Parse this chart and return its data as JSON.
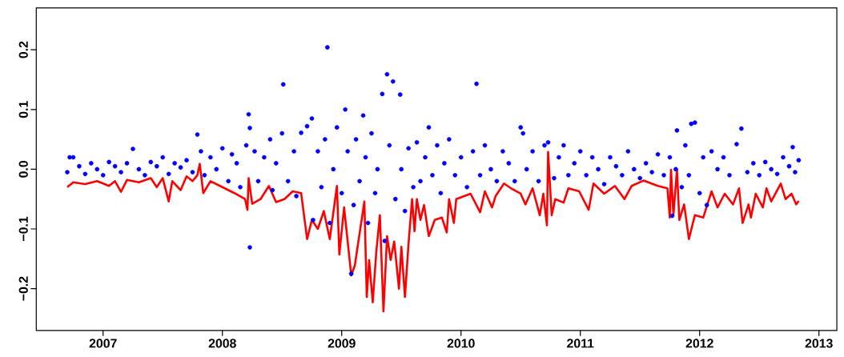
{
  "chart_data": {
    "type": "scatter",
    "marker": "circle",
    "xlim": [
      2006.44,
      2013.15
    ],
    "ylim": [
      -0.27,
      0.27
    ],
    "xticks": [
      2007,
      2008,
      2009,
      2010,
      2011,
      2012,
      2013
    ],
    "yticks": [
      {
        "value": -0.2,
        "label": "−0.2"
      },
      {
        "value": -0.1,
        "label": "−0.1"
      },
      {
        "value": 0,
        "label": "0.0"
      },
      {
        "value": 0.1,
        "label": "0.1"
      },
      {
        "value": 0.2,
        "label": "0.2"
      }
    ],
    "series": [
      {
        "color": "#0000ff",
        "x": [
          2006.7,
          2006.72,
          2006.75,
          2006.8,
          2006.85,
          2006.9,
          2006.95,
          2007.0,
          2007.05,
          2007.1,
          2007.15,
          2007.2,
          2007.25,
          2007.3,
          2007.35,
          2007.4,
          2007.45,
          2007.5,
          2007.55,
          2007.6,
          2007.65,
          2007.7,
          2007.75,
          2007.79,
          2007.82,
          2007.85,
          2007.9,
          2007.95,
          2008.0,
          2008.05,
          2008.08,
          2008.12,
          2008.15,
          2008.2,
          2008.22,
          2008.23,
          2008.23,
          2008.27,
          2008.3,
          2008.35,
          2008.4,
          2008.42,
          2008.45,
          2008.5,
          2008.51,
          2008.55,
          2008.6,
          2008.62,
          2008.66,
          2008.71,
          2008.75,
          2008.76,
          2008.8,
          2008.83,
          2008.86,
          2008.88,
          2008.9,
          2008.93,
          2008.96,
          2009.0,
          2009.03,
          2009.05,
          2009.08,
          2009.1,
          2009.12,
          2009.15,
          2009.18,
          2009.2,
          2009.22,
          2009.25,
          2009.28,
          2009.3,
          2009.34,
          2009.36,
          2009.38,
          2009.4,
          2009.43,
          2009.45,
          2009.49,
          2009.5,
          2009.53,
          2009.56,
          2009.6,
          2009.63,
          2009.66,
          2009.7,
          2009.73,
          2009.76,
          2009.8,
          2009.83,
          2009.86,
          2009.9,
          2009.95,
          2010.0,
          2010.05,
          2010.1,
          2010.13,
          2010.16,
          2010.2,
          2010.25,
          2010.3,
          2010.35,
          2010.4,
          2010.45,
          2010.5,
          2010.52,
          2010.55,
          2010.6,
          2010.65,
          2010.7,
          2010.73,
          2010.78,
          2010.82,
          2010.86,
          2010.9,
          2010.95,
          2011.0,
          2011.05,
          2011.1,
          2011.15,
          2011.2,
          2011.25,
          2011.3,
          2011.35,
          2011.4,
          2011.45,
          2011.5,
          2011.55,
          2011.6,
          2011.65,
          2011.7,
          2011.75,
          2011.77,
          2011.8,
          2011.81,
          2011.85,
          2011.88,
          2011.91,
          2011.93,
          2011.96,
          2012.0,
          2012.03,
          2012.06,
          2012.1,
          2012.15,
          2012.2,
          2012.25,
          2012.31,
          2012.35,
          2012.4,
          2012.45,
          2012.5,
          2012.55,
          2012.6,
          2012.65,
          2012.7,
          2012.75,
          2012.78,
          2012.8,
          2012.83
        ],
        "values": [
          -0.005,
          0.02,
          0.02,
          0.005,
          -0.008,
          0.01,
          0.0,
          -0.01,
          0.012,
          0.005,
          -0.005,
          0.01,
          0.034,
          0.0,
          -0.01,
          0.012,
          0.005,
          0.02,
          -0.008,
          0.01,
          0.003,
          0.015,
          -0.005,
          0.058,
          0.03,
          -0.01,
          0.02,
          0.0,
          0.035,
          -0.02,
          0.025,
          0.01,
          -0.03,
          0.04,
          0.092,
          0.069,
          -0.131,
          0.03,
          -0.02,
          0.02,
          0.05,
          -0.035,
          0.01,
          0.06,
          0.142,
          -0.02,
          0.03,
          -0.045,
          0.061,
          0.072,
          0.085,
          -0.085,
          0.03,
          -0.03,
          0.05,
          0.204,
          -0.09,
          0.0,
          0.07,
          -0.04,
          0.1,
          0.03,
          -0.175,
          -0.06,
          0.05,
          -0.02,
          0.09,
          0.02,
          -0.09,
          0.06,
          -0.04,
          0.0,
          0.126,
          -0.12,
          0.159,
          0.04,
          0.147,
          -0.05,
          0.125,
          0.0,
          -0.07,
          0.035,
          -0.03,
          0.045,
          -0.02,
          0.02,
          0.07,
          -0.01,
          0.04,
          -0.04,
          0.01,
          0.05,
          -0.01,
          0.02,
          -0.03,
          0.03,
          0.143,
          -0.01,
          0.04,
          0.0,
          -0.02,
          0.03,
          0.01,
          -0.02,
          0.07,
          0.06,
          0.0,
          0.03,
          -0.02,
          0.04,
          0.045,
          -0.015,
          0.02,
          0.04,
          -0.01,
          0.01,
          0.03,
          -0.01,
          0.02,
          0.0,
          -0.025,
          0.02,
          0.005,
          -0.01,
          0.03,
          0.0,
          -0.015,
          0.01,
          -0.005,
          0.025,
          -0.01,
          0.02,
          -0.078,
          0.0,
          0.065,
          -0.03,
          0.04,
          -0.01,
          0.076,
          0.078,
          -0.04,
          0.02,
          -0.06,
          0.03,
          0.0,
          0.02,
          -0.01,
          0.042,
          0.068,
          -0.005,
          0.01,
          -0.01,
          0.012,
          0.0,
          -0.008,
          0.02,
          0.005,
          0.037,
          -0.005,
          0.015
        ]
      },
      {
        "type": "line",
        "marker": "none",
        "color": "#ff0000",
        "x": [
          2006.7,
          2006.75,
          2006.85,
          2006.95,
          2007.05,
          2007.1,
          2007.15,
          2007.2,
          2007.3,
          2007.4,
          2007.45,
          2007.5,
          2007.55,
          2007.58,
          2007.65,
          2007.7,
          2007.75,
          2007.79,
          2007.81,
          2007.84,
          2007.9,
          2008.0,
          2008.1,
          2008.19,
          2008.21,
          2008.22,
          2008.25,
          2008.32,
          2008.39,
          2008.45,
          2008.52,
          2008.59,
          2008.66,
          2008.71,
          2008.75,
          2008.8,
          2008.85,
          2008.9,
          2008.96,
          2008.98,
          2009.02,
          2009.08,
          2009.11,
          2009.19,
          2009.21,
          2009.23,
          2009.26,
          2009.29,
          2009.32,
          2009.35,
          2009.38,
          2009.41,
          2009.44,
          2009.48,
          2009.5,
          2009.53,
          2009.56,
          2009.59,
          2009.61,
          2009.63,
          2009.66,
          2009.69,
          2009.73,
          2009.78,
          2009.84,
          2009.88,
          2009.9,
          2009.94,
          2009.96,
          2010.08,
          2010.16,
          2010.2,
          2010.26,
          2010.29,
          2010.36,
          2010.42,
          2010.5,
          2010.54,
          2010.6,
          2010.66,
          2010.69,
          2010.72,
          2010.73,
          2010.76,
          2010.79,
          2010.86,
          2010.9,
          2010.99,
          2011.07,
          2011.11,
          2011.2,
          2011.29,
          2011.37,
          2011.43,
          2011.53,
          2011.65,
          2011.73,
          2011.75,
          2011.76,
          2011.78,
          2011.81,
          2011.83,
          2011.87,
          2011.91,
          2011.96,
          2012.03,
          2012.1,
          2012.15,
          2012.21,
          2012.28,
          2012.33,
          2012.36,
          2012.41,
          2012.43,
          2012.47,
          2012.53,
          2012.56,
          2012.6,
          2012.68,
          2012.72,
          2012.77,
          2012.81,
          2012.83
        ],
        "values": [
          -0.03,
          -0.022,
          -0.025,
          -0.02,
          -0.028,
          -0.02,
          -0.038,
          -0.018,
          -0.022,
          -0.015,
          -0.03,
          -0.015,
          -0.054,
          -0.02,
          -0.035,
          -0.012,
          -0.02,
          -0.01,
          0.009,
          -0.04,
          -0.02,
          -0.03,
          -0.04,
          -0.05,
          -0.068,
          -0.015,
          -0.058,
          -0.05,
          -0.028,
          -0.055,
          -0.05,
          -0.037,
          -0.04,
          -0.117,
          -0.085,
          -0.1,
          -0.07,
          -0.117,
          -0.028,
          -0.143,
          -0.064,
          -0.178,
          -0.161,
          -0.054,
          -0.214,
          -0.152,
          -0.223,
          -0.138,
          -0.077,
          -0.238,
          -0.112,
          -0.152,
          -0.121,
          -0.2,
          -0.13,
          -0.214,
          -0.125,
          -0.05,
          -0.104,
          -0.05,
          -0.085,
          -0.06,
          -0.112,
          -0.085,
          -0.081,
          -0.106,
          -0.05,
          -0.09,
          -0.05,
          -0.041,
          -0.072,
          -0.037,
          -0.064,
          -0.045,
          -0.024,
          -0.032,
          -0.041,
          -0.059,
          -0.032,
          -0.077,
          -0.041,
          -0.094,
          0.029,
          -0.077,
          -0.05,
          -0.056,
          -0.032,
          -0.037,
          -0.068,
          -0.024,
          -0.041,
          -0.028,
          -0.05,
          -0.028,
          -0.019,
          -0.028,
          -0.032,
          -0.081,
          -0.001,
          -0.077,
          -0.001,
          -0.085,
          -0.059,
          -0.117,
          -0.077,
          -0.081,
          -0.037,
          -0.064,
          -0.041,
          -0.059,
          -0.032,
          -0.09,
          -0.059,
          -0.081,
          -0.041,
          -0.064,
          -0.032,
          -0.054,
          -0.024,
          -0.05,
          -0.041,
          -0.059,
          -0.053
        ]
      }
    ]
  }
}
